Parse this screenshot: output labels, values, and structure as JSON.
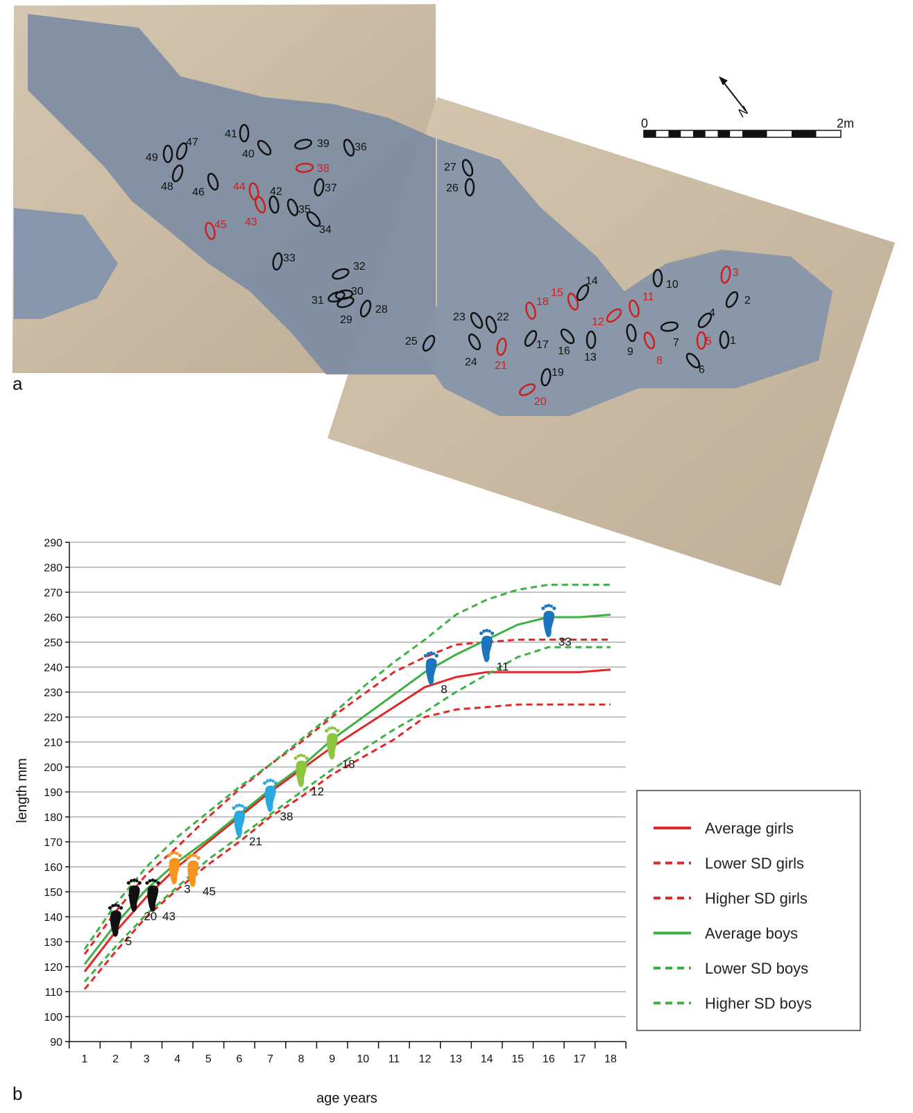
{
  "panel_labels": {
    "a": "a",
    "b": "b"
  },
  "map": {
    "scale_bar": {
      "zero": "0",
      "end": "2m"
    },
    "north_label": "N",
    "colors": {
      "black_print": "#111111",
      "red_print": "#cc1f1f",
      "ground": "#8a97a8",
      "sand": "#c7b8a2"
    },
    "prints": [
      {
        "label": "1",
        "color": "black"
      },
      {
        "label": "2",
        "color": "black"
      },
      {
        "label": "3",
        "color": "red"
      },
      {
        "label": "4",
        "color": "black"
      },
      {
        "label": "5",
        "color": "red"
      },
      {
        "label": "6",
        "color": "black"
      },
      {
        "label": "7",
        "color": "black"
      },
      {
        "label": "8",
        "color": "red"
      },
      {
        "label": "9",
        "color": "black"
      },
      {
        "label": "10",
        "color": "black"
      },
      {
        "label": "11",
        "color": "red"
      },
      {
        "label": "12",
        "color": "red"
      },
      {
        "label": "13",
        "color": "black"
      },
      {
        "label": "14",
        "color": "black"
      },
      {
        "label": "15",
        "color": "red"
      },
      {
        "label": "16",
        "color": "black"
      },
      {
        "label": "17",
        "color": "black"
      },
      {
        "label": "18",
        "color": "red"
      },
      {
        "label": "19",
        "color": "black"
      },
      {
        "label": "20",
        "color": "red"
      },
      {
        "label": "21",
        "color": "red"
      },
      {
        "label": "22",
        "color": "black"
      },
      {
        "label": "23",
        "color": "black"
      },
      {
        "label": "24",
        "color": "black"
      },
      {
        "label": "25",
        "color": "black"
      },
      {
        "label": "26",
        "color": "black"
      },
      {
        "label": "27",
        "color": "black"
      },
      {
        "label": "28",
        "color": "black"
      },
      {
        "label": "29",
        "color": "black"
      },
      {
        "label": "30",
        "color": "black"
      },
      {
        "label": "31",
        "color": "black"
      },
      {
        "label": "32",
        "color": "black"
      },
      {
        "label": "33",
        "color": "black"
      },
      {
        "label": "34",
        "color": "black"
      },
      {
        "label": "35",
        "color": "black"
      },
      {
        "label": "36",
        "color": "black"
      },
      {
        "label": "37",
        "color": "black"
      },
      {
        "label": "38",
        "color": "red"
      },
      {
        "label": "39",
        "color": "black"
      },
      {
        "label": "40",
        "color": "black"
      },
      {
        "label": "41",
        "color": "black"
      },
      {
        "label": "42",
        "color": "black"
      },
      {
        "label": "43",
        "color": "red"
      },
      {
        "label": "44",
        "color": "red"
      },
      {
        "label": "45",
        "color": "red"
      },
      {
        "label": "46",
        "color": "black"
      },
      {
        "label": "47",
        "color": "black"
      },
      {
        "label": "48",
        "color": "black"
      },
      {
        "label": "49",
        "color": "black"
      }
    ]
  },
  "chart_data": {
    "type": "line",
    "title": "",
    "xlabel": "age years",
    "ylabel": "length mm",
    "xlim": [
      1,
      18
    ],
    "ylim": [
      90,
      290
    ],
    "x_ticks": [
      "1",
      "2",
      "3",
      "4",
      "5",
      "6",
      "7",
      "8",
      "9",
      "10",
      "11",
      "12",
      "13",
      "14",
      "15",
      "16",
      "17",
      "18"
    ],
    "y_ticks": [
      "90",
      "100",
      "110",
      "120",
      "130",
      "140",
      "150",
      "160",
      "170",
      "180",
      "190",
      "200",
      "210",
      "220",
      "230",
      "240",
      "250",
      "260",
      "270",
      "280",
      "290"
    ],
    "grid": true,
    "legend_position": "right",
    "x": [
      1,
      2,
      3,
      4,
      5,
      6,
      7,
      8,
      9,
      10,
      11,
      12,
      13,
      14,
      15,
      16,
      17,
      18
    ],
    "series": [
      {
        "name": "Average girls",
        "color": "#e02727",
        "dash": false,
        "values": [
          118,
          134,
          148,
          160,
          170,
          180,
          190,
          199,
          208,
          216,
          224,
          232,
          236,
          238,
          238,
          238,
          238,
          239
        ]
      },
      {
        "name": "Lower SD girls",
        "color": "#e02727",
        "dash": true,
        "values": [
          111,
          126,
          140,
          151,
          161,
          170,
          180,
          188,
          197,
          204,
          211,
          220,
          223,
          224,
          225,
          225,
          225,
          225
        ]
      },
      {
        "name": "Higher SD girls",
        "color": "#e02727",
        "dash": true,
        "values": [
          125,
          142,
          157,
          168,
          180,
          191,
          201,
          210,
          220,
          229,
          238,
          244,
          249,
          250,
          251,
          251,
          251,
          251
        ]
      },
      {
        "name": "Average boys",
        "color": "#3cb043",
        "dash": false,
        "values": [
          121,
          137,
          151,
          162,
          171,
          181,
          191,
          200,
          211,
          220,
          229,
          238,
          245,
          251,
          257,
          260,
          260,
          261
        ]
      },
      {
        "name": "Lower SD boys",
        "color": "#3cb043",
        "dash": true,
        "values": [
          114,
          128,
          141,
          152,
          163,
          172,
          181,
          190,
          199,
          207,
          215,
          222,
          230,
          237,
          244,
          248,
          248,
          248
        ]
      },
      {
        "name": "Higher SD boys",
        "color": "#3cb043",
        "dash": true,
        "values": [
          127,
          145,
          160,
          172,
          182,
          192,
          201,
          211,
          221,
          232,
          242,
          251,
          261,
          267,
          271,
          273,
          273,
          273
        ]
      }
    ],
    "footprints": [
      {
        "label": "5",
        "x": 2,
        "y": 138,
        "color": "#111111"
      },
      {
        "label": "20",
        "x": 2.6,
        "y": 148,
        "color": "#111111"
      },
      {
        "label": "43",
        "x": 3.2,
        "y": 148,
        "color": "#111111"
      },
      {
        "label": "3",
        "x": 3.9,
        "y": 159,
        "color": "#f7941d"
      },
      {
        "label": "45",
        "x": 4.5,
        "y": 158,
        "color": "#f7941d"
      },
      {
        "label": "21",
        "x": 6,
        "y": 178,
        "color": "#29abe2"
      },
      {
        "label": "38",
        "x": 7,
        "y": 188,
        "color": "#29abe2"
      },
      {
        "label": "12",
        "x": 8,
        "y": 198,
        "color": "#8cc63f"
      },
      {
        "label": "18",
        "x": 9,
        "y": 209,
        "color": "#8cc63f"
      },
      {
        "label": "8",
        "x": 12.2,
        "y": 239,
        "color": "#1c75bc"
      },
      {
        "label": "11",
        "x": 14,
        "y": 248,
        "color": "#1c75bc"
      },
      {
        "label": "33",
        "x": 16,
        "y": 258,
        "color": "#1c75bc"
      }
    ]
  }
}
